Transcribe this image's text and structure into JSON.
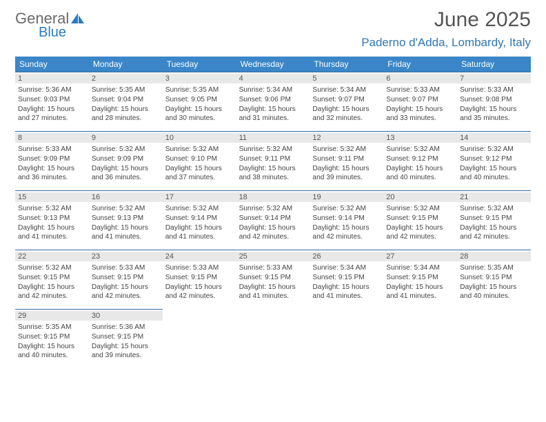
{
  "logo": {
    "text1": "General",
    "text2": "Blue",
    "icon_color": "#2b7bbf"
  },
  "title": "June 2025",
  "location": "Paderno d'Adda, Lombardy, Italy",
  "colors": {
    "header_bg": "#3a86c8",
    "header_text": "#ffffff",
    "daynum_bg": "#e8e8e8",
    "cell_border": "#346a9a",
    "location_color": "#2f77b5"
  },
  "day_headers": [
    "Sunday",
    "Monday",
    "Tuesday",
    "Wednesday",
    "Thursday",
    "Friday",
    "Saturday"
  ],
  "days": [
    {
      "n": "1",
      "sunrise": "5:36 AM",
      "sunset": "9:03 PM",
      "daylight": "15 hours and 27 minutes."
    },
    {
      "n": "2",
      "sunrise": "5:35 AM",
      "sunset": "9:04 PM",
      "daylight": "15 hours and 28 minutes."
    },
    {
      "n": "3",
      "sunrise": "5:35 AM",
      "sunset": "9:05 PM",
      "daylight": "15 hours and 30 minutes."
    },
    {
      "n": "4",
      "sunrise": "5:34 AM",
      "sunset": "9:06 PM",
      "daylight": "15 hours and 31 minutes."
    },
    {
      "n": "5",
      "sunrise": "5:34 AM",
      "sunset": "9:07 PM",
      "daylight": "15 hours and 32 minutes."
    },
    {
      "n": "6",
      "sunrise": "5:33 AM",
      "sunset": "9:07 PM",
      "daylight": "15 hours and 33 minutes."
    },
    {
      "n": "7",
      "sunrise": "5:33 AM",
      "sunset": "9:08 PM",
      "daylight": "15 hours and 35 minutes."
    },
    {
      "n": "8",
      "sunrise": "5:33 AM",
      "sunset": "9:09 PM",
      "daylight": "15 hours and 36 minutes."
    },
    {
      "n": "9",
      "sunrise": "5:32 AM",
      "sunset": "9:09 PM",
      "daylight": "15 hours and 36 minutes."
    },
    {
      "n": "10",
      "sunrise": "5:32 AM",
      "sunset": "9:10 PM",
      "daylight": "15 hours and 37 minutes."
    },
    {
      "n": "11",
      "sunrise": "5:32 AM",
      "sunset": "9:11 PM",
      "daylight": "15 hours and 38 minutes."
    },
    {
      "n": "12",
      "sunrise": "5:32 AM",
      "sunset": "9:11 PM",
      "daylight": "15 hours and 39 minutes."
    },
    {
      "n": "13",
      "sunrise": "5:32 AM",
      "sunset": "9:12 PM",
      "daylight": "15 hours and 40 minutes."
    },
    {
      "n": "14",
      "sunrise": "5:32 AM",
      "sunset": "9:12 PM",
      "daylight": "15 hours and 40 minutes."
    },
    {
      "n": "15",
      "sunrise": "5:32 AM",
      "sunset": "9:13 PM",
      "daylight": "15 hours and 41 minutes."
    },
    {
      "n": "16",
      "sunrise": "5:32 AM",
      "sunset": "9:13 PM",
      "daylight": "15 hours and 41 minutes."
    },
    {
      "n": "17",
      "sunrise": "5:32 AM",
      "sunset": "9:14 PM",
      "daylight": "15 hours and 41 minutes."
    },
    {
      "n": "18",
      "sunrise": "5:32 AM",
      "sunset": "9:14 PM",
      "daylight": "15 hours and 42 minutes."
    },
    {
      "n": "19",
      "sunrise": "5:32 AM",
      "sunset": "9:14 PM",
      "daylight": "15 hours and 42 minutes."
    },
    {
      "n": "20",
      "sunrise": "5:32 AM",
      "sunset": "9:15 PM",
      "daylight": "15 hours and 42 minutes."
    },
    {
      "n": "21",
      "sunrise": "5:32 AM",
      "sunset": "9:15 PM",
      "daylight": "15 hours and 42 minutes."
    },
    {
      "n": "22",
      "sunrise": "5:32 AM",
      "sunset": "9:15 PM",
      "daylight": "15 hours and 42 minutes."
    },
    {
      "n": "23",
      "sunrise": "5:33 AM",
      "sunset": "9:15 PM",
      "daylight": "15 hours and 42 minutes."
    },
    {
      "n": "24",
      "sunrise": "5:33 AM",
      "sunset": "9:15 PM",
      "daylight": "15 hours and 42 minutes."
    },
    {
      "n": "25",
      "sunrise": "5:33 AM",
      "sunset": "9:15 PM",
      "daylight": "15 hours and 41 minutes."
    },
    {
      "n": "26",
      "sunrise": "5:34 AM",
      "sunset": "9:15 PM",
      "daylight": "15 hours and 41 minutes."
    },
    {
      "n": "27",
      "sunrise": "5:34 AM",
      "sunset": "9:15 PM",
      "daylight": "15 hours and 41 minutes."
    },
    {
      "n": "28",
      "sunrise": "5:35 AM",
      "sunset": "9:15 PM",
      "daylight": "15 hours and 40 minutes."
    },
    {
      "n": "29",
      "sunrise": "5:35 AM",
      "sunset": "9:15 PM",
      "daylight": "15 hours and 40 minutes."
    },
    {
      "n": "30",
      "sunrise": "5:36 AM",
      "sunset": "9:15 PM",
      "daylight": "15 hours and 39 minutes."
    }
  ],
  "labels": {
    "sunrise": "Sunrise: ",
    "sunset": "Sunset: ",
    "daylight": "Daylight: "
  }
}
